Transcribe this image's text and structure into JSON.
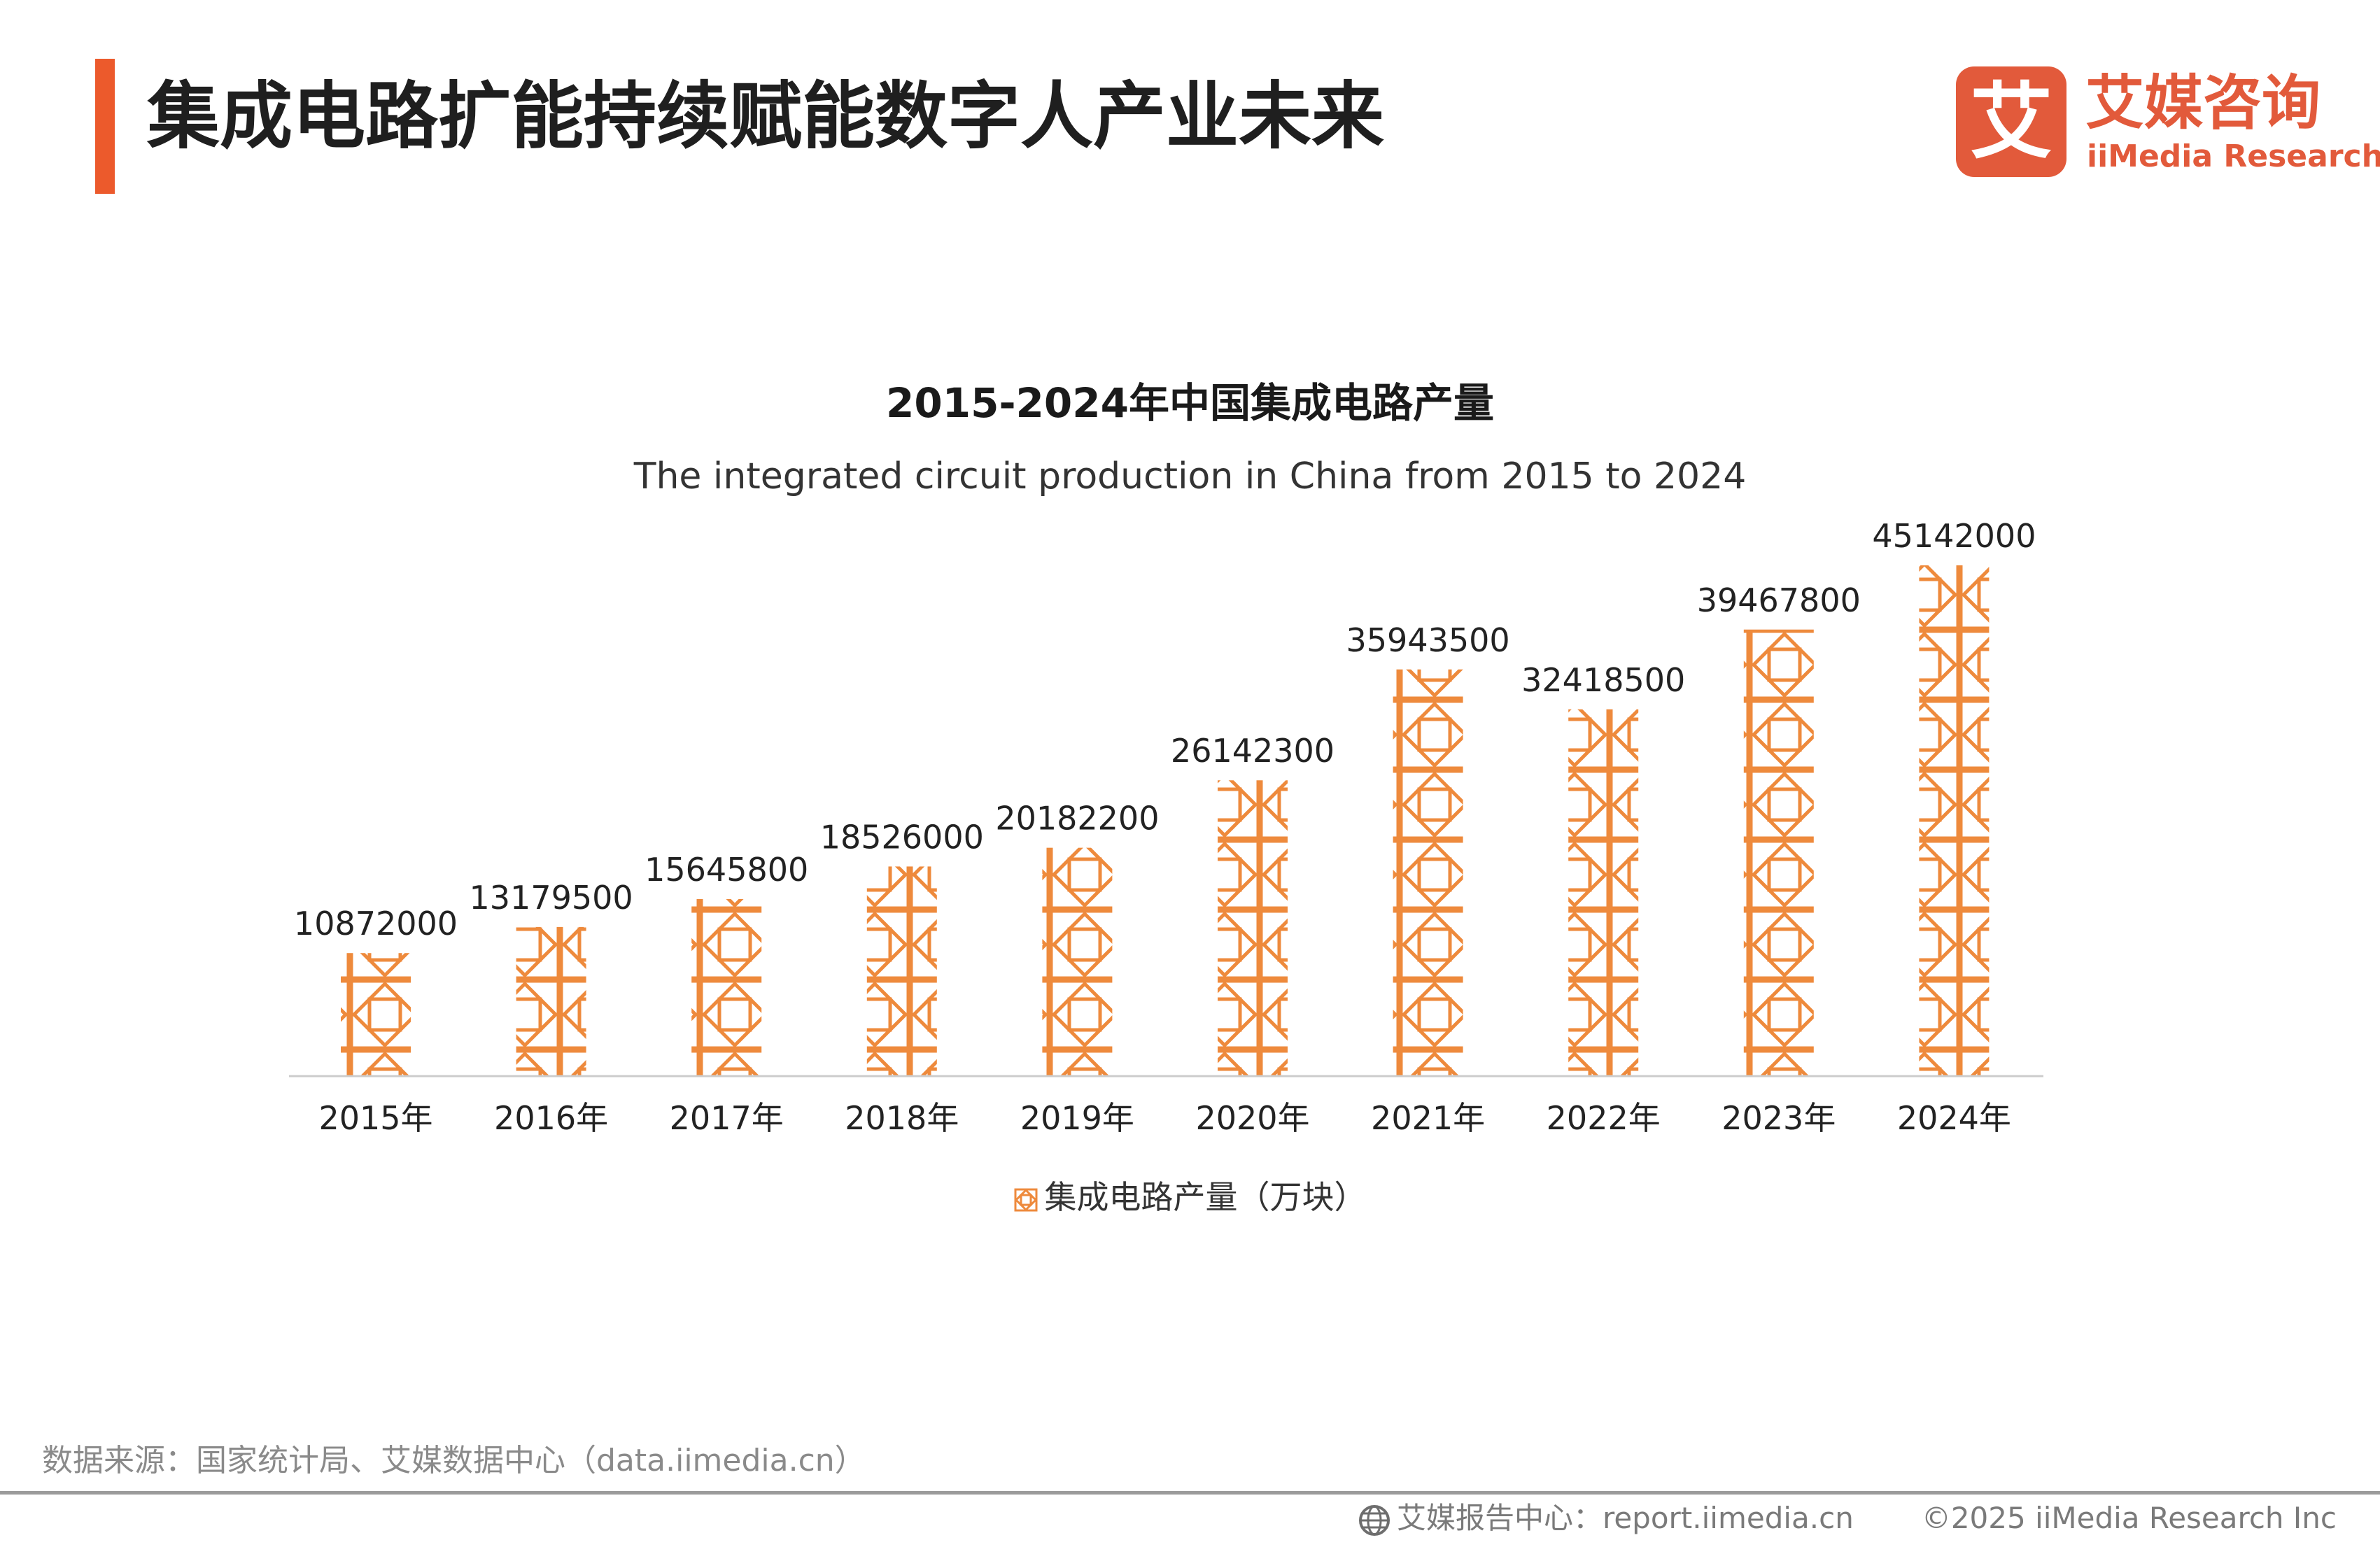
{
  "header": {
    "title": "集成电路扩能持续赋能数字人产业未来"
  },
  "logo": {
    "glyph": "艾",
    "cn_name": "艾媒咨询",
    "en_name": "iiMedia Research"
  },
  "colors": {
    "accent": "#ec5a2c",
    "bar": "#ee8a3c",
    "axis": "#cccccc"
  },
  "chart_data": {
    "type": "bar",
    "title": "2015-2024年中国集成电路产量",
    "subtitle": "The integrated circuit production in China from 2015 to 2024",
    "categories": [
      "2015年",
      "2016年",
      "2017年",
      "2018年",
      "2019年",
      "2020年",
      "2021年",
      "2022年",
      "2023年",
      "2024年"
    ],
    "series": [
      {
        "name": "集成电路产量（万块）",
        "values": [
          10872000,
          13179500,
          15645800,
          18526000,
          20182200,
          26142300,
          35943500,
          32418500,
          39467800,
          45142000
        ]
      }
    ],
    "data_labels": [
      "10872000",
      "13179500",
      "15645800",
      "18526000",
      "20182200",
      "26142300",
      "35943500",
      "32418500",
      "39467800",
      "45142000"
    ],
    "xlabel": "",
    "ylabel": "",
    "ylim": [
      0,
      45142000
    ],
    "grid": false,
    "legend_position": "bottom"
  },
  "legend": {
    "label": "集成电路产量（万块）"
  },
  "footer": {
    "source": "数据来源：国家统计局、艾媒数据中心（data.iimedia.cn）",
    "center": "艾媒报告中心：report.iimedia.cn",
    "copyright": "©2025  iiMedia Research  Inc"
  }
}
